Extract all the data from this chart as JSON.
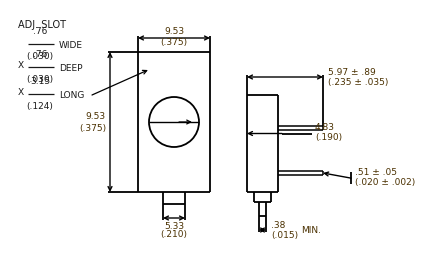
{
  "bg_color": "#ffffff",
  "line_color": "#000000",
  "dim_color": "#4a3000",
  "text_color": "#1a1a1a",
  "annotations": {
    "adj_slot": "ADJ. SLOT",
    "wide_top": ".76",
    "wide_bot": "(.030)",
    "wide_label": "WIDE",
    "deepx": "X",
    "deep_top": ".76",
    "deep_bot": "(.030)",
    "deep_label": "DEEP",
    "longx": "X",
    "long_top": "3.15",
    "long_bot": "(.124)",
    "long_label": "LONG",
    "dim953h_top": "9.53",
    "dim953h_bot": "(.375)",
    "dim953v_top": "9.53",
    "dim953v_bot": "(.375)",
    "dim533_top": "5.33",
    "dim533_bot": "(.210)",
    "dim597_top": "5.97 ± .89",
    "dim597_bot": "(.235 ± .035)",
    "dim483_top": "4.83",
    "dim483_bot": "(.190)",
    "dim051_top": ".51 ± .05",
    "dim051_bot": "(.020 ± .002)",
    "dim038_top": ".38",
    "dim038_bot": "(.015)",
    "min_label": "MIN."
  }
}
